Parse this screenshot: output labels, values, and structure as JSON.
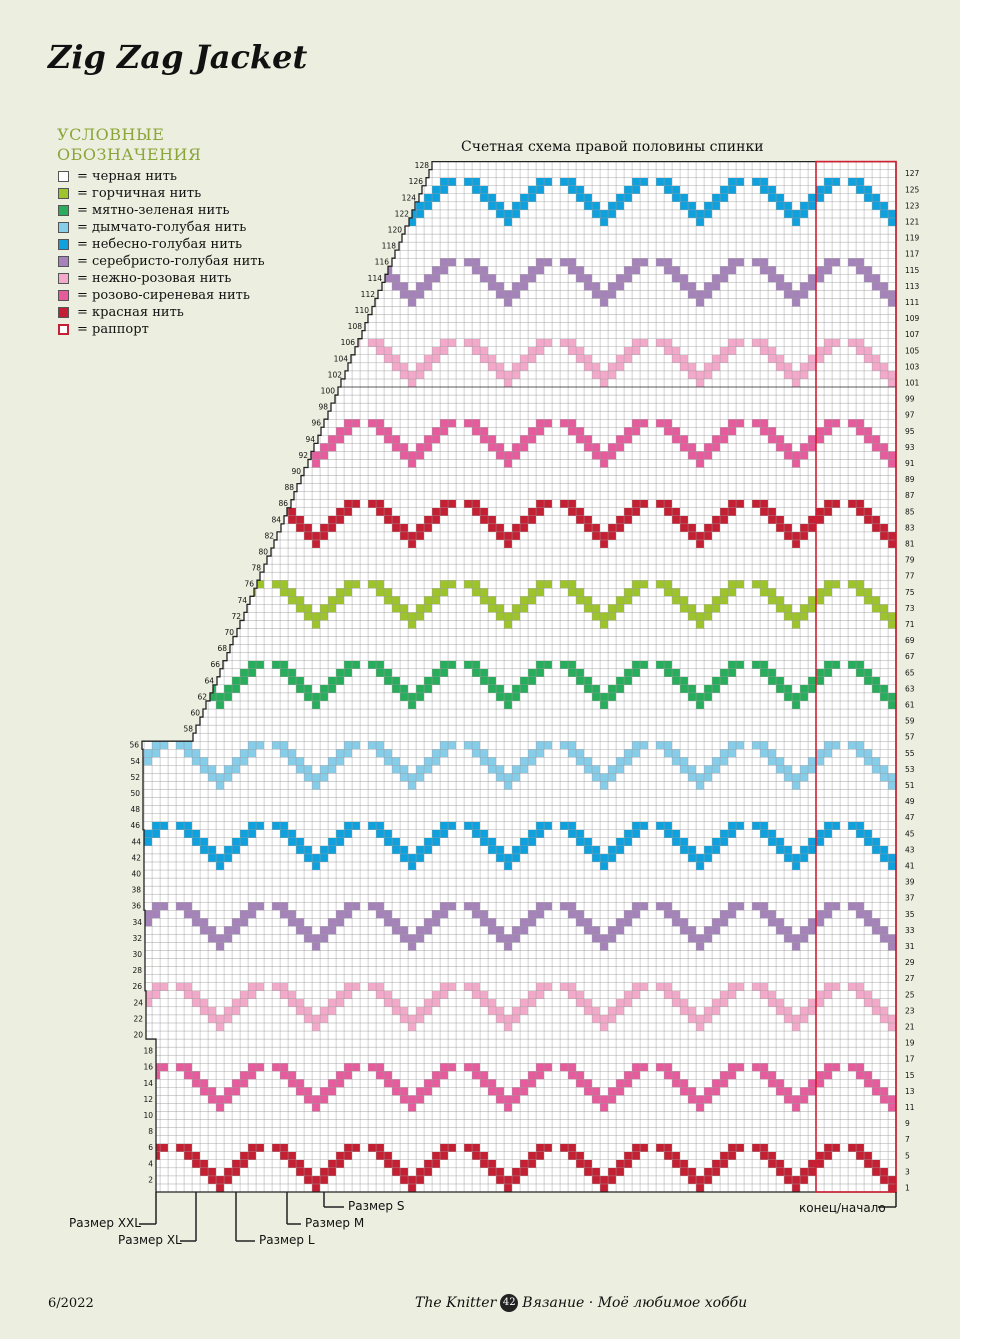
{
  "title": "Zig Zag Jacket",
  "legend": {
    "heading": "УСЛОВНЫЕ ОБОЗНАЧЕНИЯ",
    "items": [
      {
        "color": "#ffffff",
        "label": "= черная нить"
      },
      {
        "color": "#9dc42a",
        "label": "= горчичная нить"
      },
      {
        "color": "#27ad5c",
        "label": "= мятно-зеленая нить"
      },
      {
        "color": "#86cdea",
        "label": "= дымчато-голубая нить"
      },
      {
        "color": "#0ea1dd",
        "label": "= небесно-голубая нить"
      },
      {
        "color": "#a682bb",
        "label": "= серебристо-голубая нить"
      },
      {
        "color": "#f3a9c9",
        "label": "= нежно-розовая нить"
      },
      {
        "color": "#e55b9c",
        "label": "= розово-сиреневая нить"
      },
      {
        "color": "#c51f33",
        "label": "= красная нить"
      },
      {
        "color": "#c51f33",
        "label": "= раппорт",
        "outline": true
      }
    ]
  },
  "chart": {
    "title": "Счетная схема правой половины спинки",
    "rows": 128,
    "right_row_numbers": [
      1,
      3,
      5,
      7,
      9,
      11,
      13,
      15,
      17,
      19,
      21,
      23,
      25,
      27,
      29,
      31,
      33,
      35,
      37,
      39,
      41,
      43,
      45,
      47,
      49,
      51,
      53,
      55,
      57,
      59,
      61,
      63,
      65,
      67,
      69,
      71,
      73,
      75,
      77,
      79,
      81,
      83,
      85,
      87,
      89,
      91,
      93,
      95,
      97,
      99,
      101,
      103,
      105,
      107,
      109,
      111,
      113,
      115,
      117,
      119,
      121,
      123,
      125,
      127
    ],
    "left_row_numbers": [
      2,
      4,
      6,
      8,
      10,
      12,
      14,
      16,
      18,
      20,
      22,
      24,
      26,
      28,
      30,
      32,
      34,
      36,
      38,
      40,
      42,
      44,
      46,
      48,
      50,
      52,
      54,
      56,
      58,
      60,
      62,
      64,
      66,
      68,
      70,
      72,
      74,
      76,
      78,
      80,
      82,
      84,
      86,
      88,
      90,
      92,
      94,
      96,
      98,
      100,
      102,
      104,
      106,
      108,
      110,
      112,
      114,
      116,
      118,
      120,
      122,
      124,
      126,
      128
    ],
    "stripe_colors": [
      "#c51f33",
      "#e55b9c",
      "#f3a9c9",
      "#a682bb",
      "#0ea1dd",
      "#86cdea",
      "#27ad5c",
      "#9dc42a",
      "#c51f33",
      "#e55b9c",
      "#f3a9c9",
      "#a682bb",
      "#0ea1dd",
      "#86cdea",
      "#27ad5c",
      "#9dc42a"
    ],
    "repeat_label": "раппорт",
    "end_start_label": "конец/начало"
  },
  "sizes": {
    "s": "Размер S",
    "m": "Размер M",
    "l": "Размер L",
    "xl": "Размер XL",
    "xxl": "Размер XXL"
  },
  "footer": {
    "date": "6/2022",
    "brand": "The Knitter",
    "page": "42",
    "tagline": "Вязание · Моё любимое хобби"
  }
}
